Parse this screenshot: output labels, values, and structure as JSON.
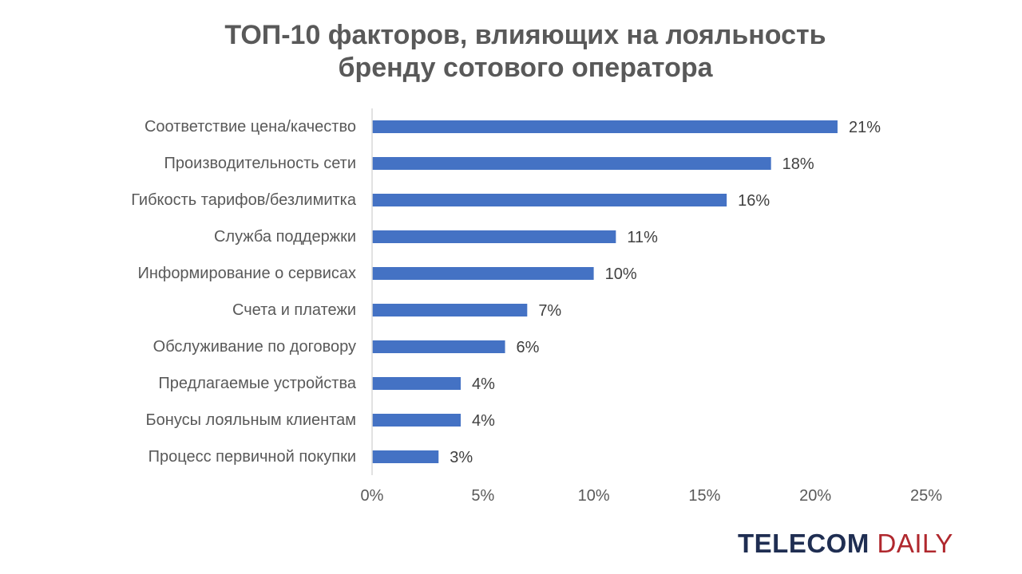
{
  "chart_data": {
    "type": "bar",
    "orientation": "horizontal",
    "title_lines": [
      "ТОП-10 факторов, влияющих на лояльность",
      "бренду сотового оператора"
    ],
    "categories": [
      "Соответствие цена/качество",
      "Производительность сети",
      "Гибкость тарифов/безлимитка",
      "Служба поддержки",
      "Информирование о сервисах",
      "Счета и платежи",
      "Обслуживание по договору",
      "Предлагаемые устройства",
      "Бонусы лояльным клиентам",
      "Процесс первичной покупки"
    ],
    "values": [
      21,
      18,
      16,
      11,
      10,
      7,
      6,
      4,
      4,
      3
    ],
    "value_labels": [
      "21%",
      "18%",
      "16%",
      "11%",
      "10%",
      "7%",
      "6%",
      "4%",
      "4%",
      "3%"
    ],
    "xlim": [
      0,
      25
    ],
    "x_ticks": [
      0,
      5,
      10,
      15,
      20,
      25
    ],
    "x_tick_labels": [
      "0%",
      "5%",
      "10%",
      "15%",
      "20%",
      "25%"
    ],
    "grid": false,
    "legend": "none",
    "bar_color": "#4472c4"
  },
  "brand": {
    "part1": "TELECOM",
    "part2": "DAILY"
  }
}
